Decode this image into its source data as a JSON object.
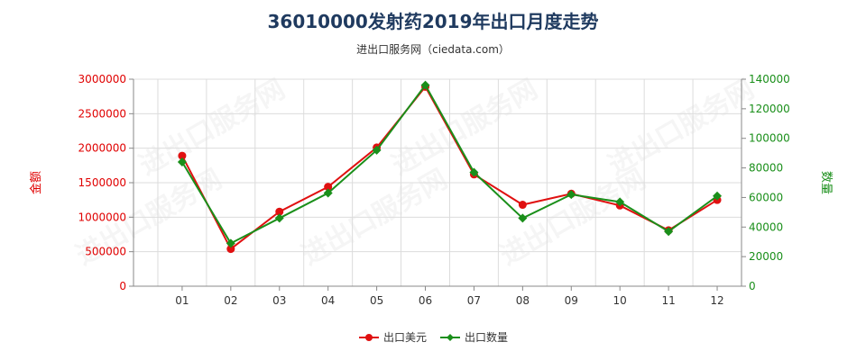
{
  "chart_data": {
    "type": "line",
    "title": "36010000发射药2019年出口月度走势",
    "subtitle": "进出口服务网（ciedata.com）",
    "categories": [
      "01",
      "02",
      "03",
      "04",
      "05",
      "06",
      "07",
      "08",
      "09",
      "10",
      "11",
      "12"
    ],
    "y_left": {
      "label": "金额",
      "ylim": [
        0,
        3000000
      ],
      "ticks": [
        "0",
        "500000",
        "1000000",
        "1500000",
        "2000000",
        "2500000",
        "3000000"
      ],
      "color": "#e00000"
    },
    "y_right": {
      "label": "数量",
      "ylim": [
        0,
        140000
      ],
      "ticks": [
        "0",
        "20000",
        "40000",
        "60000",
        "80000",
        "100000",
        "120000",
        "140000"
      ],
      "color": "#1a8f1a"
    },
    "series": [
      {
        "name": "出口美元",
        "axis": "left",
        "color": "#e01010",
        "values": [
          1890000,
          540000,
          1080000,
          1440000,
          2010000,
          2890000,
          1620000,
          1180000,
          1340000,
          1170000,
          810000,
          1250000
        ]
      },
      {
        "name": "出口数量",
        "axis": "right",
        "color": "#1a8f1a",
        "values": [
          84000,
          29000,
          46000,
          63000,
          92000,
          136000,
          77000,
          46000,
          62000,
          57000,
          37000,
          61000
        ]
      }
    ],
    "grid": true,
    "legend": "bottom-center",
    "watermark": "进出口服务网"
  }
}
